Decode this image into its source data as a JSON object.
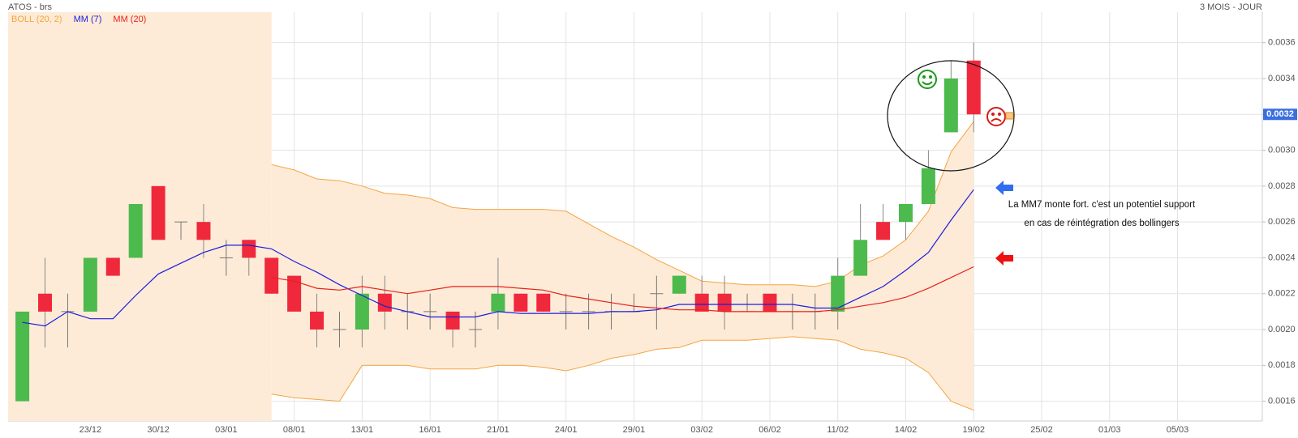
{
  "chart_data": {
    "type": "candlestick",
    "title": "ATOS - brs",
    "period": "3 MOIS - JOUR",
    "categories": [
      null,
      null,
      null,
      "23/12",
      null,
      null,
      "30/12",
      null,
      null,
      "03/01",
      null,
      null,
      "08/01",
      null,
      null,
      "13/01",
      null,
      null,
      "16/01",
      null,
      null,
      "21/01",
      null,
      null,
      "24/01",
      null,
      null,
      "29/01",
      null,
      null,
      "03/02",
      null,
      null,
      "06/02",
      null,
      null,
      "11/02",
      null,
      null,
      "14/02",
      null,
      null,
      "19/02",
      null,
      null,
      "25/02",
      null,
      null,
      "01/03",
      null,
      null,
      "05/03"
    ],
    "open": [
      0.0016,
      0.0022,
      0.0021,
      0.0021,
      0.0024,
      0.0024,
      0.0028,
      0.0026,
      0.0026,
      0.0024,
      0.0025,
      0.0024,
      0.0023,
      0.0021,
      0.002,
      0.002,
      0.0022,
      0.0021,
      0.0021,
      0.0021,
      0.002,
      0.0021,
      0.0022,
      0.0022,
      0.0021,
      0.0021,
      0.0021,
      0.0021,
      0.0022,
      0.0022,
      0.0022,
      0.0022,
      0.0021,
      0.0022,
      0.0021,
      0.0021,
      0.0021,
      0.0023,
      0.0026,
      0.0026,
      0.0027,
      0.0031,
      0.0035,
      null,
      null,
      null,
      null,
      null,
      null,
      null,
      null,
      null
    ],
    "high": [
      0.0021,
      0.0024,
      0.0022,
      0.0024,
      0.0024,
      0.0027,
      0.0028,
      0.0026,
      0.0027,
      0.0025,
      0.0025,
      0.0024,
      0.0023,
      0.0022,
      0.0021,
      0.0023,
      0.0023,
      0.0022,
      0.0022,
      0.0021,
      0.0021,
      0.0024,
      0.0022,
      0.0022,
      0.0022,
      0.0022,
      0.0022,
      0.0022,
      0.0023,
      0.0023,
      0.0023,
      0.0023,
      0.0022,
      0.0022,
      0.0022,
      0.0022,
      0.0024,
      0.0027,
      0.0027,
      0.0027,
      0.003,
      0.0035,
      0.0036,
      null,
      null,
      null,
      null,
      null,
      null,
      null,
      null,
      null
    ],
    "low": [
      0.0016,
      0.0019,
      0.0019,
      0.0021,
      0.0023,
      0.0024,
      0.0025,
      0.0025,
      0.0024,
      0.0023,
      0.0023,
      0.0022,
      0.0021,
      0.0019,
      0.0019,
      0.0019,
      0.002,
      0.002,
      0.002,
      0.0019,
      0.0019,
      0.002,
      0.0021,
      0.0021,
      0.002,
      0.002,
      0.002,
      0.0021,
      0.002,
      0.0022,
      0.0021,
      0.002,
      0.0021,
      0.0021,
      0.002,
      0.002,
      0.002,
      0.0023,
      0.0025,
      0.0025,
      0.0027,
      0.0031,
      0.0031,
      null,
      null,
      null,
      null,
      null,
      null,
      null,
      null,
      null
    ],
    "close": [
      0.0021,
      0.0021,
      0.0021,
      0.0024,
      0.0023,
      0.0027,
      0.0025,
      0.0026,
      0.0025,
      0.0024,
      0.0024,
      0.0022,
      0.0021,
      0.002,
      0.002,
      0.0022,
      0.0021,
      0.0021,
      0.0021,
      0.002,
      0.002,
      0.0022,
      0.0021,
      0.0021,
      0.0021,
      0.0021,
      0.0021,
      0.0021,
      0.0022,
      0.0023,
      0.0021,
      0.0021,
      0.0021,
      0.0021,
      0.0021,
      0.0021,
      0.0023,
      0.0025,
      0.0025,
      0.0027,
      0.0029,
      0.0034,
      0.0032,
      null,
      null,
      null,
      null,
      null,
      null,
      null,
      null,
      null
    ],
    "up_color": "#4cba4c",
    "down_color": "#f0283c",
    "series": [
      {
        "name": "BOLL (20, 2)",
        "color": "#f5a442",
        "fill": "#fdebd7",
        "upper": [
          null,
          null,
          null,
          null,
          null,
          null,
          null,
          null,
          null,
          null,
          null,
          0.00292,
          0.00289,
          0.00284,
          0.00283,
          0.0028,
          0.00276,
          0.00275,
          0.00273,
          0.00268,
          0.00267,
          0.00267,
          0.00267,
          0.00267,
          0.00266,
          0.00259,
          0.00252,
          0.00246,
          0.00239,
          0.00233,
          0.00227,
          0.00226,
          0.00225,
          0.00225,
          0.00225,
          0.00224,
          0.00227,
          0.00236,
          0.00241,
          0.0025,
          0.00266,
          0.00299,
          0.00316,
          null,
          null,
          null,
          null,
          null,
          null,
          null,
          null,
          null
        ],
        "lower": [
          null,
          null,
          null,
          null,
          null,
          null,
          null,
          null,
          null,
          null,
          null,
          0.00164,
          0.00162,
          0.00161,
          0.0016,
          0.0018,
          0.0018,
          0.0018,
          0.00178,
          0.00178,
          0.00178,
          0.0018,
          0.0018,
          0.00179,
          0.00177,
          0.0018,
          0.00184,
          0.00186,
          0.00189,
          0.0019,
          0.00194,
          0.00194,
          0.00194,
          0.00195,
          0.00196,
          0.00195,
          0.00194,
          0.00189,
          0.00187,
          0.00184,
          0.00176,
          0.0016,
          0.00155,
          null,
          null,
          null,
          null,
          null,
          null,
          null,
          null,
          null
        ]
      },
      {
        "name": "MM (7)",
        "color": "#1c1ce0",
        "values": [
          0.00204,
          0.00202,
          0.0021,
          0.00206,
          0.00206,
          0.00219,
          0.00231,
          0.00237,
          0.00243,
          0.00247,
          0.00247,
          0.00245,
          0.00238,
          0.00232,
          0.00225,
          0.00219,
          0.00213,
          0.0021,
          0.00207,
          0.00207,
          0.00207,
          0.0021,
          0.00209,
          0.00209,
          0.00209,
          0.00209,
          0.0021,
          0.0021,
          0.00211,
          0.00214,
          0.00214,
          0.00214,
          0.00214,
          0.00214,
          0.00214,
          0.00212,
          0.00212,
          0.00218,
          0.00224,
          0.00233,
          0.00243,
          0.00261,
          0.00278,
          null,
          null,
          null,
          null,
          null,
          null,
          null,
          null,
          null
        ]
      },
      {
        "name": "MM (20)",
        "color": "#e8201c",
        "values": [
          null,
          null,
          null,
          null,
          null,
          null,
          null,
          null,
          null,
          null,
          null,
          0.00229,
          0.00227,
          0.00223,
          0.00222,
          0.00224,
          0.00222,
          0.0022,
          0.00222,
          0.00224,
          0.00224,
          0.00224,
          0.00223,
          0.00222,
          0.00219,
          0.00217,
          0.00215,
          0.00213,
          0.00212,
          0.00211,
          0.00211,
          0.0021,
          0.0021,
          0.0021,
          0.0021,
          0.0021,
          0.00211,
          0.00213,
          0.00215,
          0.00218,
          0.00223,
          0.00229,
          0.00235,
          null,
          null,
          null,
          null,
          null,
          null,
          null,
          null,
          null
        ]
      }
    ],
    "ylim": [
      0.00149,
      0.00377
    ],
    "yticks": [
      0.0016,
      0.0018,
      {
        "value": 0.002,
        "label": "0.0020"
      },
      0.0022,
      0.0024,
      0.0026,
      0.0028,
      {
        "value": 0.003,
        "label": "0.0030"
      },
      0.0032,
      0.0034,
      0.0036
    ],
    "grid": true,
    "last_price": 0.0032,
    "last_price_color": "#3b6fe0",
    "annotations": [
      "La MM7 monte fort. c'est un potentiel support",
      "en cas de réintégration des bollingers"
    ]
  }
}
